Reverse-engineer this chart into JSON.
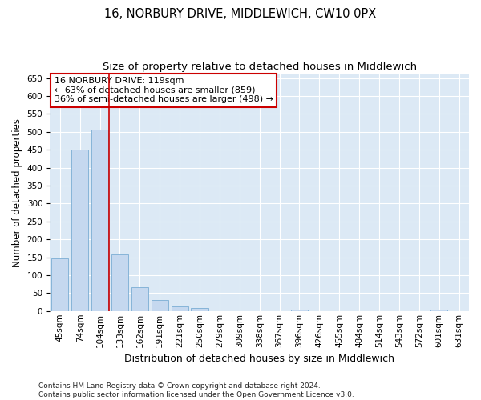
{
  "title": "16, NORBURY DRIVE, MIDDLEWICH, CW10 0PX",
  "subtitle": "Size of property relative to detached houses in Middlewich",
  "xlabel": "Distribution of detached houses by size in Middlewich",
  "ylabel": "Number of detached properties",
  "bar_categories": [
    "45sqm",
    "74sqm",
    "104sqm",
    "133sqm",
    "162sqm",
    "191sqm",
    "221sqm",
    "250sqm",
    "279sqm",
    "309sqm",
    "338sqm",
    "367sqm",
    "396sqm",
    "426sqm",
    "455sqm",
    "484sqm",
    "514sqm",
    "543sqm",
    "572sqm",
    "601sqm",
    "631sqm"
  ],
  "bar_values": [
    147,
    450,
    507,
    158,
    66,
    30,
    13,
    8,
    0,
    0,
    0,
    0,
    5,
    0,
    0,
    0,
    0,
    0,
    0,
    5,
    0
  ],
  "bar_color": "#c5d8ef",
  "bar_edge_color": "#7aadd4",
  "vline_x": 2.45,
  "vline_color": "#cc0000",
  "ylim": [
    0,
    660
  ],
  "yticks": [
    0,
    50,
    100,
    150,
    200,
    250,
    300,
    350,
    400,
    450,
    500,
    550,
    600,
    650
  ],
  "annotation_text": "16 NORBURY DRIVE: 119sqm\n← 63% of detached houses are smaller (859)\n36% of semi-detached houses are larger (498) →",
  "annotation_box_color": "#ffffff",
  "annotation_box_edge": "#cc0000",
  "plot_bg_color": "#dce9f5",
  "footer": "Contains HM Land Registry data © Crown copyright and database right 2024.\nContains public sector information licensed under the Open Government Licence v3.0.",
  "title_fontsize": 10.5,
  "subtitle_fontsize": 9.5,
  "xlabel_fontsize": 9,
  "ylabel_fontsize": 8.5,
  "tick_fontsize": 7.5,
  "annotation_fontsize": 8,
  "footer_fontsize": 6.5
}
